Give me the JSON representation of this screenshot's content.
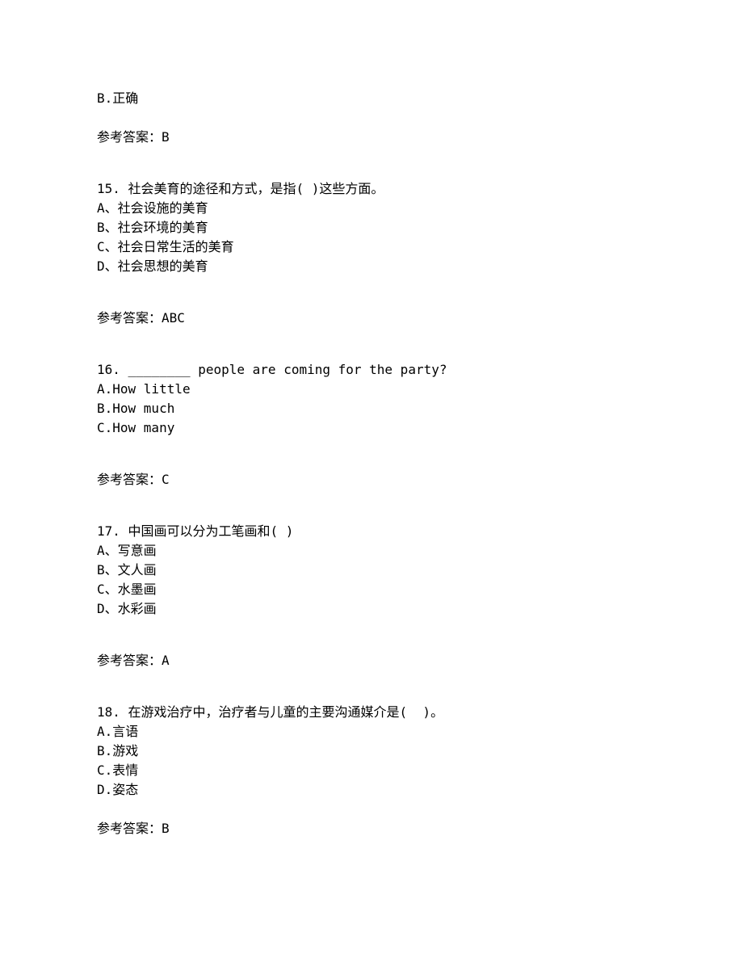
{
  "prev_option": "B.正确",
  "prev_answer": "参考答案：B",
  "q15": {
    "stem": "15. 社会美育的途径和方式，是指( )这些方面。",
    "options": {
      "a": "A、社会设施的美育",
      "b": "B、社会环境的美育",
      "c": "C、社会日常生活的美育",
      "d": "D、社会思想的美育"
    },
    "answer": "参考答案：ABC"
  },
  "q16": {
    "stem": "16. ________ people are coming for the party?",
    "options": {
      "a": "A.How little",
      "b": "B.How much",
      "c": "C.How many"
    },
    "answer": "参考答案：C"
  },
  "q17": {
    "stem": "17. 中国画可以分为工笔画和( )",
    "options": {
      "a": "A、写意画",
      "b": "B、文人画",
      "c": "C、水墨画",
      "d": "D、水彩画"
    },
    "answer": "参考答案：A"
  },
  "q18": {
    "stem": "18. 在游戏治疗中，治疗者与儿童的主要沟通媒介是(  )。",
    "options": {
      "a": "A.言语",
      "b": "B.游戏",
      "c": "C.表情",
      "d": "D.姿态"
    },
    "answer": "参考答案：B"
  }
}
